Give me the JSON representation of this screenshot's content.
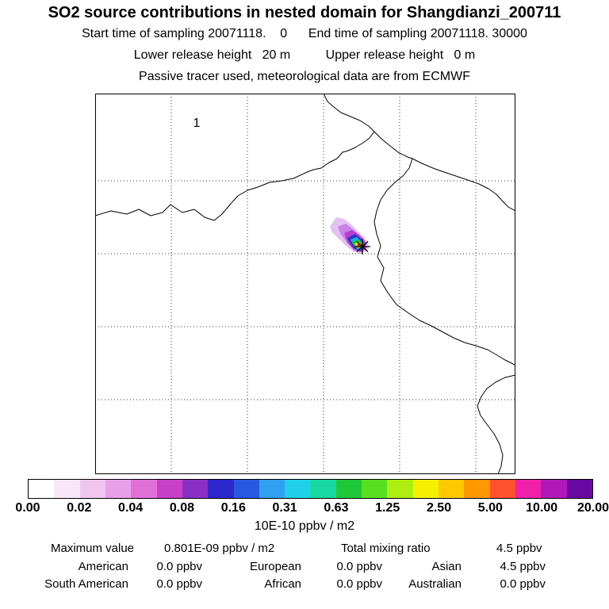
{
  "title": "SO2 source contributions in nested domain for Shangdianzi_200711",
  "subtitles": {
    "sampling": "Start time of sampling 20071118.    0      End time of sampling 20071118. 30000",
    "release_heights": "Lower release height   20 m          Upper release height   0 m",
    "tracer": "Passive tracer used, meteorological data are from ECMWF"
  },
  "map": {
    "domain_label": "1"
  },
  "colorbar": {
    "units": "10E-10 ppbv / m2",
    "tick_labels": [
      "0.00",
      "0.02",
      "0.04",
      "0.08",
      "0.16",
      "0.31",
      "0.63",
      "1.25",
      "2.50",
      "5.00",
      "10.00",
      "20.00"
    ],
    "segment_colors": [
      "#ffffff",
      "#f7e7f7",
      "#f0c6f0",
      "#e8a0e8",
      "#e070d8",
      "#c840c8",
      "#8830c8",
      "#2c28cc",
      "#2858e0",
      "#30a0f0",
      "#20d0e8",
      "#18d8a0",
      "#20c838",
      "#58e020",
      "#aeee10",
      "#f4f000",
      "#ffc800",
      "#ff9800",
      "#ff5030",
      "#f020a8",
      "#b018b8",
      "#6808a0"
    ]
  },
  "stats": {
    "row1": [
      {
        "label": "Maximum value",
        "value": "0.801E-09 ppbv / m2"
      },
      {
        "label": "Total mixing ratio",
        "value": "4.5 ppbv"
      }
    ],
    "rows": [
      [
        {
          "label": "American",
          "value": "0.0 ppbv"
        },
        {
          "label": "European",
          "value": "0.0 ppbv"
        },
        {
          "label": "Asian",
          "value": "4.5 ppbv"
        }
      ],
      [
        {
          "label": "South American",
          "value": "0.0 ppbv"
        },
        {
          "label": "African",
          "value": "0.0 ppbv"
        },
        {
          "label": "Australian",
          "value": "0.0 ppbv"
        }
      ]
    ]
  },
  "chart_data": {
    "type": "heatmap",
    "title": "SO2 source contributions in nested domain for Shangdianzi_200711",
    "subtitle": [
      "Start time of sampling 20071118. 0",
      "End time of sampling 20071118. 30000",
      "Lower release height 20 m",
      "Upper release height 0 m",
      "Passive tracer used, meteorological data are from ECMWF"
    ],
    "colorbar_levels": [
      0.0,
      0.02,
      0.04,
      0.08,
      0.16,
      0.31,
      0.63,
      1.25,
      2.5,
      5.0,
      10.0,
      20.0
    ],
    "colorbar_units": "10E-10 ppbv / m2",
    "nest_domain_label": "1",
    "maximum_value": "0.801E-09 ppbv / m2",
    "total_mixing_ratio_ppbv": 4.5,
    "contributions_ppbv": {
      "American": 0.0,
      "European": 0.0,
      "Asian": 4.5,
      "South American": 0.0,
      "African": 0.0,
      "Australian": 0.0
    },
    "plume": "single SO2 source plume with maximum near source marker, tail extending northwest",
    "legend_position": "horizontal colorbar below map",
    "grid": "dotted lat/lon graticule"
  }
}
